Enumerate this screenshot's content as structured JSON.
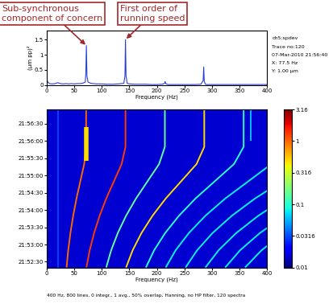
{
  "chart_data": [
    {
      "type": "line",
      "x_label": "Frequency (Hz)",
      "y_label": "(µm pp)²",
      "x": [
        0,
        2,
        5,
        10,
        15,
        20,
        25,
        30,
        35,
        40,
        45,
        50,
        55,
        60,
        65,
        70,
        71,
        72,
        73,
        75,
        80,
        85,
        90,
        100,
        110,
        120,
        130,
        140,
        142,
        143,
        144,
        146,
        150,
        160,
        170,
        180,
        190,
        200,
        210,
        214,
        215,
        216,
        220,
        230,
        240,
        250,
        260,
        270,
        280,
        284,
        285,
        286,
        288,
        290,
        300,
        320,
        340,
        360,
        380,
        400
      ],
      "values": [
        0.2,
        0.1,
        0.05,
        0.04,
        0.05,
        0.08,
        0.05,
        0.04,
        0.05,
        0.04,
        0.05,
        0.04,
        0.05,
        0.05,
        0.06,
        0.1,
        0.4,
        1.3,
        0.3,
        0.1,
        0.06,
        0.05,
        0.04,
        0.04,
        0.03,
        0.03,
        0.04,
        0.06,
        0.3,
        1.5,
        0.3,
        0.06,
        0.04,
        0.03,
        0.03,
        0.03,
        0.02,
        0.02,
        0.03,
        0.06,
        0.12,
        0.05,
        0.02,
        0.02,
        0.02,
        0.02,
        0.02,
        0.02,
        0.03,
        0.15,
        0.6,
        0.12,
        0.03,
        0.02,
        0.02,
        0.02,
        0.02,
        0.02,
        0.02,
        0.02
      ],
      "color": "#2a3fd6",
      "xlim": [
        0,
        400
      ],
      "xticks": [
        0,
        50,
        100,
        150,
        200,
        250,
        300,
        350,
        400
      ],
      "ylim": [
        0,
        1.8
      ],
      "yticks": [
        0,
        0.5,
        1,
        1.5
      ],
      "grid": false,
      "annotations": [
        {
          "text": "Sub-synchronous\ncomponent of concern",
          "x": 72,
          "y": 1.3
        },
        {
          "text": "First order of\nrunning speed",
          "x": 143,
          "y": 1.5
        }
      ],
      "info": [
        "ch5:spdev",
        "Trace no:120",
        "07-Mar-2010 21:56:40",
        "X: 77.5 Hz",
        "Y: 1.00 µm"
      ]
    },
    {
      "type": "spectrogram",
      "x_label": "Frequency (Hz)",
      "xlim": [
        0,
        400
      ],
      "xticks": [
        0,
        50,
        100,
        150,
        200,
        250,
        300,
        350,
        400
      ],
      "ylim": [
        78740,
        79015
      ],
      "yticks": [
        {
          "value": 78750,
          "label": "21:52:30"
        },
        {
          "value": 78780,
          "label": "21:53:00"
        },
        {
          "value": 78810,
          "label": "21:53:30"
        },
        {
          "value": 78840,
          "label": "21:54:00"
        },
        {
          "value": 78870,
          "label": "21:54:30"
        },
        {
          "value": 78900,
          "label": "21:55:00"
        },
        {
          "value": 78930,
          "label": "21:55:30"
        },
        {
          "value": 78960,
          "label": "21:56:00"
        },
        {
          "value": 78990,
          "label": "21:56:30"
        }
      ],
      "colorbar": {
        "range": [
          0.01,
          3.16
        ],
        "ticks": [
          0.01,
          0.0316,
          0.1,
          0.316,
          1,
          3.16
        ],
        "log": true
      },
      "background_level": 0.015,
      "time": [
        78740,
        78770,
        78800,
        78830,
        78860,
        78890,
        78920,
        78950,
        78980,
        79015
      ],
      "series": [
        {
          "time": [
            78740,
            79015
          ],
          "frequency": [
            20,
            20
          ],
          "level": 0.03
        },
        {
          "time": [
            78960,
            79015
          ],
          "frequency": [
            370,
            370
          ],
          "level": 0.06
        },
        {
          "frequency": [
            36,
            39,
            43,
            48,
            54,
            61,
            68,
            71.5,
            71.5,
            71.5
          ],
          "level": 1.0
        },
        {
          "frequency": [
            72,
            78,
            86,
            96,
            108,
            122,
            136,
            143,
            143,
            143
          ],
          "level": 1.3
        },
        {
          "frequency": [
            108,
            117,
            129,
            144,
            162,
            183,
            204,
            214.5,
            214.5,
            214.5
          ],
          "level": 0.15
        },
        {
          "frequency": [
            144,
            156,
            172,
            192,
            216,
            244,
            272,
            286,
            286,
            286
          ],
          "level": 0.5
        },
        {
          "frequency": [
            180,
            195,
            215,
            240,
            270,
            305,
            340,
            357.5,
            357.5,
            357.5
          ],
          "level": 0.1
        },
        {
          "frequency": [
            216,
            234,
            258,
            288,
            324,
            366,
            408,
            429,
            429,
            429
          ],
          "level": 0.08
        },
        {
          "frequency": [
            252,
            273,
            301,
            336,
            378,
            427,
            476,
            500.5,
            500.5,
            500.5
          ],
          "level": 0.08
        },
        {
          "frequency": [
            288,
            312,
            344,
            384,
            432,
            488,
            544,
            572,
            572,
            572
          ],
          "level": 0.08
        },
        {
          "frequency": [
            324,
            351,
            387,
            432,
            486,
            549,
            612,
            643.5,
            643.5,
            643.5
          ],
          "level": 0.08
        },
        {
          "frequency": [
            360,
            390,
            430,
            480,
            540,
            610,
            680,
            715,
            715,
            715
          ],
          "level": 0.08
        },
        {
          "time": [
            78925,
            78985
          ],
          "frequency": [
            72,
            72
          ],
          "level": 0.5
        }
      ],
      "caption": "400 Hz, 800 lines, 0 integr., 1 avg., 50% overlap, Hanning, no HP filter, 120 spectra"
    }
  ]
}
